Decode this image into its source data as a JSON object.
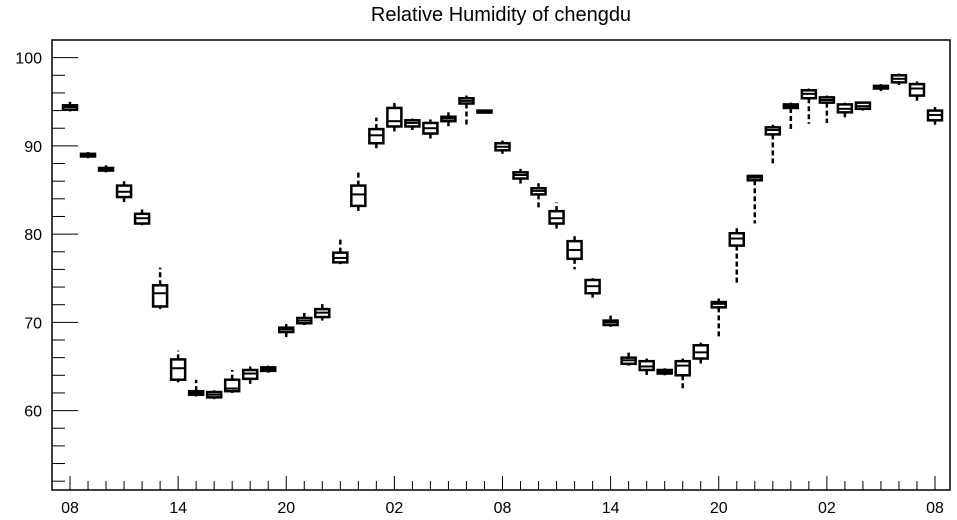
{
  "chart_data": {
    "type": "box",
    "title": "Relative Humidity of chengdu",
    "xlabel": "",
    "ylabel": "",
    "ylim": [
      51,
      102
    ],
    "y_ticks": [
      60,
      70,
      80,
      90,
      100
    ],
    "x_tick_labels": [
      "08",
      "14",
      "20",
      "02",
      "08",
      "14",
      "20",
      "02",
      "08"
    ],
    "grid": false,
    "boxes": [
      {
        "x": 0,
        "q1": 94.1,
        "median": 94.4,
        "q3": 94.6,
        "whisker_low": 93.9,
        "whisker_high": 95.0
      },
      {
        "x": 1,
        "q1": 88.8,
        "median": 89.0,
        "q3": 89.1,
        "whisker_low": 88.6,
        "whisker_high": 89.3
      },
      {
        "x": 2,
        "q1": 87.2,
        "median": 87.4,
        "q3": 87.5,
        "whisker_low": 87.0,
        "whisker_high": 87.8
      },
      {
        "x": 3,
        "q1": 84.2,
        "median": 84.8,
        "q3": 85.5,
        "whisker_low": 83.5,
        "whisker_high": 86.0
      },
      {
        "x": 4,
        "q1": 81.2,
        "median": 81.8,
        "q3": 82.3,
        "whisker_low": 81.0,
        "whisker_high": 82.8
      },
      {
        "x": 5,
        "q1": 71.8,
        "median": 73.3,
        "q3": 74.2,
        "whisker_low": 71.5,
        "whisker_high": 76.2
      },
      {
        "x": 6,
        "q1": 63.5,
        "median": 64.8,
        "q3": 65.8,
        "whisker_low": 63.2,
        "whisker_high": 66.8
      },
      {
        "x": 7,
        "q1": 61.8,
        "median": 62.0,
        "q3": 62.2,
        "whisker_low": 61.6,
        "whisker_high": 63.5
      },
      {
        "x": 8,
        "q1": 61.5,
        "median": 61.8,
        "q3": 62.1,
        "whisker_low": 61.3,
        "whisker_high": 62.3
      },
      {
        "x": 9,
        "q1": 62.2,
        "median": 62.5,
        "q3": 63.5,
        "whisker_low": 62.0,
        "whisker_high": 64.6
      },
      {
        "x": 10,
        "q1": 63.6,
        "median": 64.2,
        "q3": 64.6,
        "whisker_low": 62.8,
        "whisker_high": 65.0
      },
      {
        "x": 11,
        "q1": 64.5,
        "median": 64.7,
        "q3": 64.9,
        "whisker_low": 64.3,
        "whisker_high": 65.1
      },
      {
        "x": 12,
        "q1": 68.9,
        "median": 69.2,
        "q3": 69.4,
        "whisker_low": 68.3,
        "whisker_high": 69.8
      },
      {
        "x": 13,
        "q1": 69.9,
        "median": 70.2,
        "q3": 70.5,
        "whisker_low": 69.7,
        "whisker_high": 71.2
      },
      {
        "x": 14,
        "q1": 70.6,
        "median": 71.1,
        "q3": 71.5,
        "whisker_low": 70.2,
        "whisker_high": 72.3
      },
      {
        "x": 15,
        "q1": 76.8,
        "median": 77.3,
        "q3": 77.9,
        "whisker_low": 76.6,
        "whisker_high": 79.4
      },
      {
        "x": 16,
        "q1": 83.2,
        "median": 84.5,
        "q3": 85.5,
        "whisker_low": 82.5,
        "whisker_high": 87.3
      },
      {
        "x": 17,
        "q1": 90.3,
        "median": 91.2,
        "q3": 91.9,
        "whisker_low": 89.5,
        "whisker_high": 93.2
      },
      {
        "x": 18,
        "q1": 92.2,
        "median": 92.8,
        "q3": 94.3,
        "whisker_low": 91.5,
        "whisker_high": 95.2
      },
      {
        "x": 19,
        "q1": 92.2,
        "median": 92.6,
        "q3": 92.9,
        "whisker_low": 91.8,
        "whisker_high": 93.1
      },
      {
        "x": 20,
        "q1": 91.4,
        "median": 92.0,
        "q3": 92.6,
        "whisker_low": 90.5,
        "whisker_high": 93.0
      },
      {
        "x": 21,
        "q1": 92.8,
        "median": 93.1,
        "q3": 93.3,
        "whisker_low": 92.2,
        "whisker_high": 93.8
      },
      {
        "x": 22,
        "q1": 94.8,
        "median": 95.1,
        "q3": 95.4,
        "whisker_low": 92.3,
        "whisker_high": 95.7
      },
      {
        "x": 23,
        "q1": 93.8,
        "median": 93.9,
        "q3": 94.0,
        "whisker_low": 93.7,
        "whisker_high": 94.1
      },
      {
        "x": 24,
        "q1": 89.5,
        "median": 89.9,
        "q3": 90.3,
        "whisker_low": 89.1,
        "whisker_high": 90.6
      },
      {
        "x": 25,
        "q1": 86.3,
        "median": 86.7,
        "q3": 87.0,
        "whisker_low": 85.6,
        "whisker_high": 87.4
      },
      {
        "x": 26,
        "q1": 84.5,
        "median": 84.9,
        "q3": 85.2,
        "whisker_low": 83.0,
        "whisker_high": 85.8
      },
      {
        "x": 27,
        "q1": 81.2,
        "median": 81.8,
        "q3": 82.6,
        "whisker_low": 80.6,
        "whisker_high": 83.6
      },
      {
        "x": 28,
        "q1": 77.2,
        "median": 78.2,
        "q3": 79.2,
        "whisker_low": 76.0,
        "whisker_high": 79.9
      },
      {
        "x": 29,
        "q1": 73.3,
        "median": 74.1,
        "q3": 74.8,
        "whisker_low": 72.8,
        "whisker_high": 75.0
      },
      {
        "x": 30,
        "q1": 69.7,
        "median": 70.0,
        "q3": 70.2,
        "whisker_low": 69.5,
        "whisker_high": 70.8
      },
      {
        "x": 31,
        "q1": 65.3,
        "median": 65.7,
        "q3": 66.0,
        "whisker_low": 65.1,
        "whisker_high": 66.8
      },
      {
        "x": 32,
        "q1": 64.6,
        "median": 65.0,
        "q3": 65.6,
        "whisker_low": 63.8,
        "whisker_high": 65.9
      },
      {
        "x": 33,
        "q1": 64.2,
        "median": 64.4,
        "q3": 64.6,
        "whisker_low": 64.0,
        "whisker_high": 64.8
      },
      {
        "x": 34,
        "q1": 64.0,
        "median": 65.1,
        "q3": 65.6,
        "whisker_low": 62.3,
        "whisker_high": 65.9
      },
      {
        "x": 35,
        "q1": 65.9,
        "median": 66.6,
        "q3": 67.4,
        "whisker_low": 65.3,
        "whisker_high": 67.7
      },
      {
        "x": 36,
        "q1": 71.7,
        "median": 72.1,
        "q3": 72.3,
        "whisker_low": 68.4,
        "whisker_high": 72.7
      },
      {
        "x": 37,
        "q1": 78.7,
        "median": 79.5,
        "q3": 80.1,
        "whisker_low": 74.5,
        "whisker_high": 80.7
      },
      {
        "x": 38,
        "q1": 86.1,
        "median": 86.4,
        "q3": 86.6,
        "whisker_low": 81.2,
        "whisker_high": 86.7
      },
      {
        "x": 39,
        "q1": 91.3,
        "median": 91.8,
        "q3": 92.1,
        "whisker_low": 87.9,
        "whisker_high": 92.4
      },
      {
        "x": 40,
        "q1": 94.3,
        "median": 94.5,
        "q3": 94.7,
        "whisker_low": 91.6,
        "whisker_high": 94.9
      },
      {
        "x": 41,
        "q1": 95.4,
        "median": 95.9,
        "q3": 96.3,
        "whisker_low": 92.5,
        "whisker_high": 96.5
      },
      {
        "x": 42,
        "q1": 94.9,
        "median": 95.2,
        "q3": 95.5,
        "whisker_low": 92.6,
        "whisker_high": 95.7
      },
      {
        "x": 43,
        "q1": 93.8,
        "median": 94.2,
        "q3": 94.7,
        "whisker_low": 93.1,
        "whisker_high": 94.9
      },
      {
        "x": 44,
        "q1": 94.2,
        "median": 94.5,
        "q3": 94.9,
        "whisker_low": 94.0,
        "whisker_high": 95.0
      },
      {
        "x": 45,
        "q1": 96.5,
        "median": 96.7,
        "q3": 96.8,
        "whisker_low": 96.2,
        "whisker_high": 97.0
      },
      {
        "x": 46,
        "q1": 97.2,
        "median": 97.6,
        "q3": 98.0,
        "whisker_low": 96.9,
        "whisker_high": 98.2
      },
      {
        "x": 47,
        "q1": 95.7,
        "median": 96.5,
        "q3": 97.0,
        "whisker_low": 95.1,
        "whisker_high": 97.3
      },
      {
        "x": 48,
        "q1": 92.9,
        "median": 93.5,
        "q3": 94.0,
        "whisker_low": 92.4,
        "whisker_high": 94.4
      }
    ]
  }
}
